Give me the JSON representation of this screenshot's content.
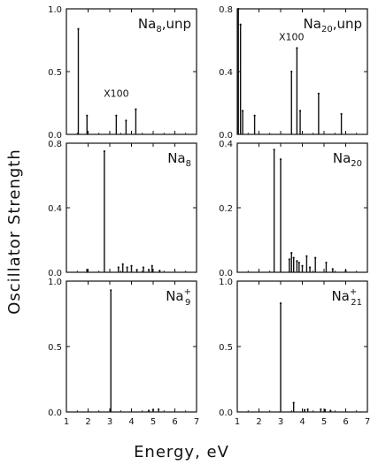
{
  "figure": {
    "xlabel": "Energy, eV",
    "ylabel": "Oscillator Strength"
  },
  "chart_data": [
    {
      "type": "bar",
      "panel": "top-left",
      "label": {
        "main": "Na",
        "sub": "8",
        "sup": "",
        "suffix": ",unp"
      },
      "annotation": "X100",
      "xlim": [
        1,
        7
      ],
      "ylim": [
        0,
        1.0
      ],
      "yticks": [
        0.0,
        0.5,
        1.0
      ],
      "xticks": [
        1,
        2,
        3,
        4,
        5,
        6,
        7
      ],
      "lines": [
        {
          "x": 1.55,
          "y": 0.84
        },
        {
          "x": 1.95,
          "y": 0.15
        },
        {
          "x": 3.3,
          "y": 0.15
        },
        {
          "x": 3.75,
          "y": 0.11
        },
        {
          "x": 4.2,
          "y": 0.2
        }
      ]
    },
    {
      "type": "bar",
      "panel": "top-right",
      "label": {
        "main": "Na",
        "sub": "20",
        "sup": "",
        "suffix": ",unp"
      },
      "annotation": "X100",
      "xlim": [
        1,
        7
      ],
      "ylim": [
        0,
        0.8
      ],
      "yticks": [
        0.0,
        0.4,
        0.8
      ],
      "xticks": [
        1,
        2,
        3,
        4,
        5,
        6,
        7
      ],
      "lines": [
        {
          "x": 1.05,
          "y": 0.8
        },
        {
          "x": 1.15,
          "y": 0.7
        },
        {
          "x": 1.25,
          "y": 0.15
        },
        {
          "x": 1.8,
          "y": 0.12
        },
        {
          "x": 3.5,
          "y": 0.4
        },
        {
          "x": 3.75,
          "y": 0.55
        },
        {
          "x": 3.9,
          "y": 0.15
        },
        {
          "x": 4.75,
          "y": 0.26
        },
        {
          "x": 5.8,
          "y": 0.13
        }
      ]
    },
    {
      "type": "bar",
      "panel": "middle-left",
      "label": {
        "main": "Na",
        "sub": "8",
        "sup": "",
        "suffix": ""
      },
      "annotation": "",
      "xlim": [
        1,
        7
      ],
      "ylim": [
        0,
        0.8
      ],
      "yticks": [
        0.0,
        0.4,
        0.8
      ],
      "xticks": [
        1,
        2,
        3,
        4,
        5,
        6,
        7
      ],
      "lines": [
        {
          "x": 1.95,
          "y": 0.015
        },
        {
          "x": 2.75,
          "y": 0.75
        },
        {
          "x": 3.4,
          "y": 0.03
        },
        {
          "x": 3.6,
          "y": 0.05
        },
        {
          "x": 3.8,
          "y": 0.03
        },
        {
          "x": 4.0,
          "y": 0.04
        },
        {
          "x": 4.25,
          "y": 0.015
        },
        {
          "x": 4.55,
          "y": 0.03
        },
        {
          "x": 4.8,
          "y": 0.015
        },
        {
          "x": 4.95,
          "y": 0.04
        },
        {
          "x": 5.3,
          "y": 0.01
        }
      ]
    },
    {
      "type": "bar",
      "panel": "middle-right",
      "label": {
        "main": "Na",
        "sub": "20",
        "sup": "",
        "suffix": ""
      },
      "annotation": "",
      "xlim": [
        1,
        7
      ],
      "ylim": [
        0,
        0.4
      ],
      "yticks": [
        0.0,
        0.2,
        0.4
      ],
      "xticks": [
        1,
        2,
        3,
        4,
        5,
        6,
        7
      ],
      "lines": [
        {
          "x": 2.7,
          "y": 0.38
        },
        {
          "x": 3.0,
          "y": 0.35
        },
        {
          "x": 3.4,
          "y": 0.04
        },
        {
          "x": 3.5,
          "y": 0.06
        },
        {
          "x": 3.6,
          "y": 0.045
        },
        {
          "x": 3.75,
          "y": 0.035
        },
        {
          "x": 3.85,
          "y": 0.03
        },
        {
          "x": 4.0,
          "y": 0.02
        },
        {
          "x": 4.2,
          "y": 0.05
        },
        {
          "x": 4.35,
          "y": 0.015
        },
        {
          "x": 4.6,
          "y": 0.045
        },
        {
          "x": 5.1,
          "y": 0.03
        },
        {
          "x": 5.4,
          "y": 0.01
        },
        {
          "x": 6.0,
          "y": 0.005
        }
      ]
    },
    {
      "type": "bar",
      "panel": "bottom-left",
      "label": {
        "main": "Na",
        "sub": "9",
        "sup": "+",
        "suffix": ""
      },
      "annotation": "",
      "xlim": [
        1,
        7
      ],
      "ylim": [
        0,
        1.0
      ],
      "yticks": [
        0.0,
        0.5,
        1.0
      ],
      "xticks": [
        1,
        2,
        3,
        4,
        5,
        6,
        7
      ],
      "lines": [
        {
          "x": 3.05,
          "y": 0.93
        },
        {
          "x": 4.8,
          "y": 0.01
        },
        {
          "x": 5.0,
          "y": 0.015
        },
        {
          "x": 5.25,
          "y": 0.02
        }
      ]
    },
    {
      "type": "bar",
      "panel": "bottom-right",
      "label": {
        "main": "Na",
        "sub": "21",
        "sup": "+",
        "suffix": ""
      },
      "annotation": "",
      "xlim": [
        1,
        7
      ],
      "ylim": [
        0,
        1.0
      ],
      "yticks": [
        0.0,
        0.5,
        1.0
      ],
      "xticks": [
        1,
        2,
        3,
        4,
        5,
        6,
        7
      ],
      "lines": [
        {
          "x": 3.0,
          "y": 0.83
        },
        {
          "x": 3.6,
          "y": 0.07
        },
        {
          "x": 4.1,
          "y": 0.015
        },
        {
          "x": 4.25,
          "y": 0.02
        },
        {
          "x": 4.85,
          "y": 0.02
        },
        {
          "x": 5.05,
          "y": 0.015
        },
        {
          "x": 5.3,
          "y": 0.01
        }
      ]
    }
  ]
}
